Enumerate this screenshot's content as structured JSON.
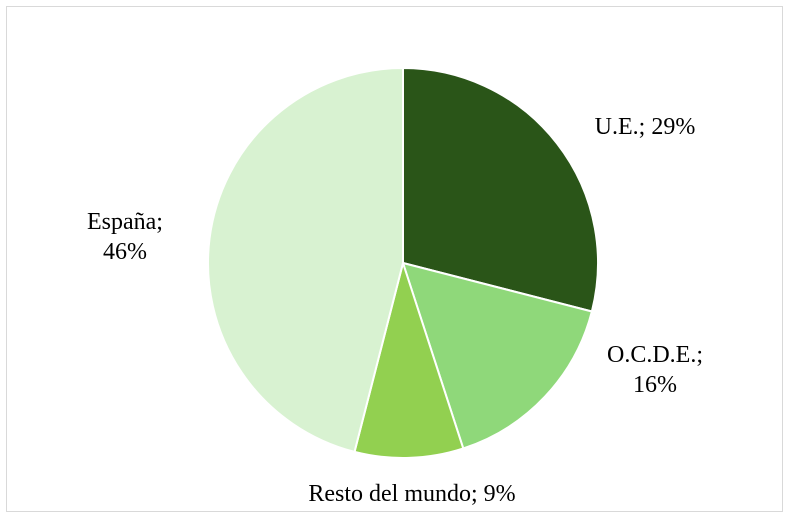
{
  "chart_data": {
    "type": "pie",
    "values": [
      29,
      16,
      9,
      46
    ],
    "value_labels": [
      "U.E.; 29%",
      "O.C.D.E.; 16%",
      "Resto del mundo; 9%",
      "España; 46%"
    ],
    "colors": [
      "#2a5518",
      "#8fd87a",
      "#92d050",
      "#d8f2d1"
    ]
  }
}
